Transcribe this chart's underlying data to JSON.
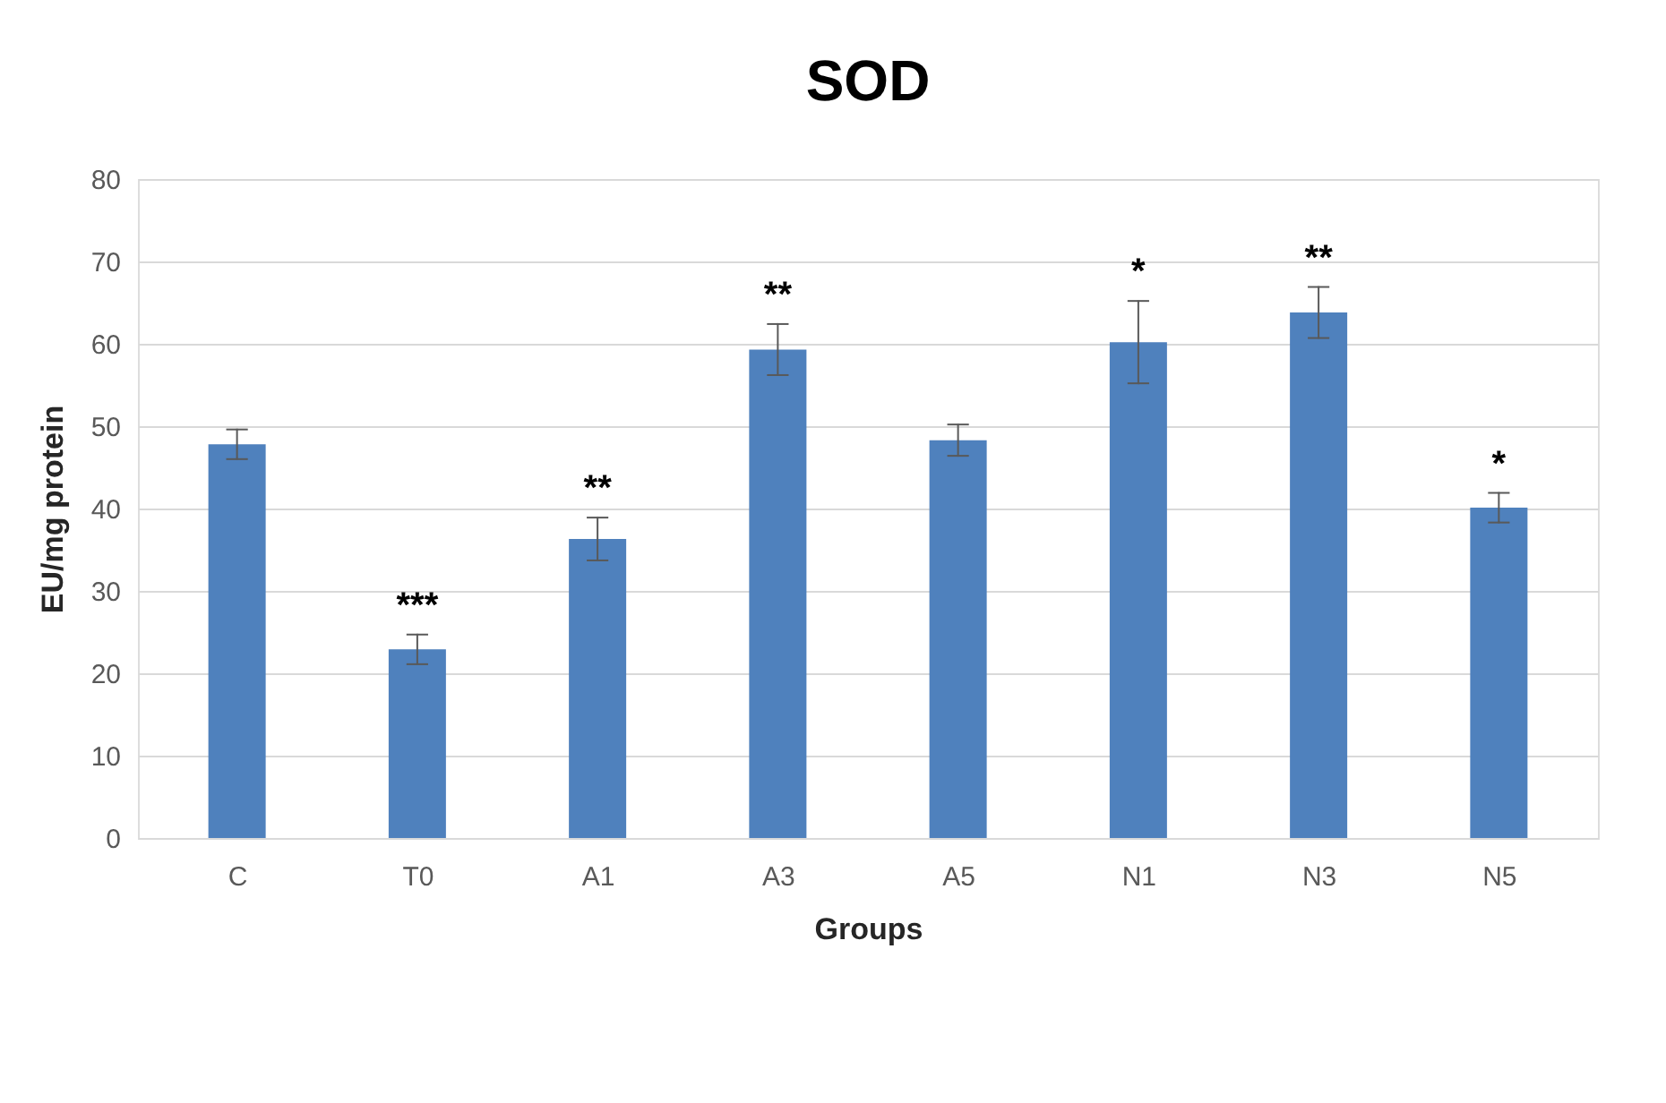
{
  "chart_data": {
    "type": "bar",
    "title": "SOD",
    "xlabel": "Groups",
    "ylabel": "EU/mg protein",
    "categories": [
      "C",
      "T0",
      "A1",
      "A3",
      "A5",
      "N1",
      "N3",
      "N5"
    ],
    "values": [
      47.8,
      22.9,
      36.3,
      59.3,
      48.3,
      60.2,
      63.8,
      40.1
    ],
    "errors": [
      1.8,
      1.8,
      2.6,
      3.1,
      1.9,
      5.0,
      3.1,
      1.8
    ],
    "color": "#4f81bd",
    "ylim": [
      0,
      80
    ],
    "yticks": [
      0,
      10,
      20,
      30,
      40,
      50,
      60,
      70,
      80
    ],
    "grid": "y",
    "value_labels": [
      null,
      "***",
      "**",
      "**",
      null,
      "*",
      "**",
      "*"
    ]
  }
}
